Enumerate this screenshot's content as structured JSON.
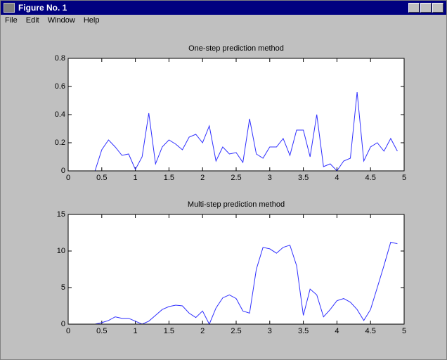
{
  "window": {
    "title": "Figure No. 1",
    "menu": [
      "File",
      "Edit",
      "Window",
      "Help"
    ]
  },
  "chart_data": [
    {
      "type": "line",
      "title": "One-step prediction method",
      "color": "#3030ff",
      "x": [
        0,
        0.1,
        0.2,
        0.3,
        0.4,
        0.5,
        0.6,
        0.7,
        0.8,
        0.9,
        1.0,
        1.1,
        1.2,
        1.3,
        1.4,
        1.5,
        1.6,
        1.7,
        1.8,
        1.9,
        2.0,
        2.1,
        2.2,
        2.3,
        2.4,
        2.5,
        2.6,
        2.7,
        2.8,
        2.9,
        3.0,
        3.1,
        3.2,
        3.3,
        3.4,
        3.5,
        3.6,
        3.7,
        3.8,
        3.9,
        4.0,
        4.1,
        4.2,
        4.3,
        4.4,
        4.5,
        4.6,
        4.7,
        4.8,
        4.9
      ],
      "values": [
        0,
        0,
        0,
        0,
        0,
        0.15,
        0.22,
        0.17,
        0.11,
        0.12,
        0.01,
        0.1,
        0.41,
        0.05,
        0.17,
        0.22,
        0.19,
        0.15,
        0.24,
        0.26,
        0.2,
        0.32,
        0.07,
        0.17,
        0.12,
        0.13,
        0.06,
        0.37,
        0.12,
        0.09,
        0.17,
        0.17,
        0.23,
        0.11,
        0.29,
        0.29,
        0.1,
        0.4,
        0.03,
        0.05,
        0.0,
        0.07,
        0.09,
        0.56,
        0.07,
        0.17,
        0.2,
        0.14,
        0.23,
        0.14
      ],
      "xlim": [
        0,
        5
      ],
      "xticks": [
        0,
        0.5,
        1,
        1.5,
        2,
        2.5,
        3,
        3.5,
        4,
        4.5,
        5
      ],
      "ylim": [
        0,
        0.8
      ],
      "yticks": [
        0,
        0.2,
        0.4,
        0.6,
        0.8
      ]
    },
    {
      "type": "line",
      "title": "Multi-step prediction method",
      "color": "#3030ff",
      "x": [
        0,
        0.1,
        0.2,
        0.3,
        0.4,
        0.5,
        0.6,
        0.7,
        0.8,
        0.9,
        1.0,
        1.1,
        1.2,
        1.3,
        1.4,
        1.5,
        1.6,
        1.7,
        1.8,
        1.9,
        2.0,
        2.1,
        2.2,
        2.3,
        2.4,
        2.5,
        2.6,
        2.7,
        2.8,
        2.9,
        3.0,
        3.1,
        3.2,
        3.3,
        3.4,
        3.5,
        3.6,
        3.7,
        3.8,
        3.9,
        4.0,
        4.1,
        4.2,
        4.3,
        4.4,
        4.5,
        4.6,
        4.7,
        4.8,
        4.9
      ],
      "values": [
        0,
        0,
        0,
        0,
        0,
        0.2,
        0.5,
        1.0,
        0.8,
        0.8,
        0.4,
        0.0,
        0.4,
        1.2,
        2.0,
        2.4,
        2.6,
        2.5,
        1.5,
        0.9,
        1.8,
        0.0,
        2.2,
        3.6,
        4.0,
        3.5,
        1.8,
        1.5,
        7.5,
        10.5,
        10.3,
        9.7,
        10.5,
        10.8,
        8.0,
        1.2,
        4.8,
        4.0,
        1.0,
        2.0,
        3.2,
        3.5,
        3.0,
        2.0,
        0.5,
        2.0,
        5.0,
        8.0,
        11.2,
        11.0
      ],
      "xlim": [
        0,
        5
      ],
      "xticks": [
        0,
        0.5,
        1,
        1.5,
        2,
        2.5,
        3,
        3.5,
        4,
        4.5,
        5
      ],
      "ylim": [
        0,
        15
      ],
      "yticks": [
        0,
        5,
        10,
        15
      ]
    }
  ]
}
